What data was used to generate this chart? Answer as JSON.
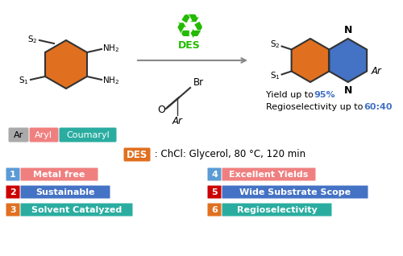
{
  "bg_color": "#ffffff",
  "orange_color": "#E07020",
  "blue_color": "#4472C4",
  "teal_color": "#2AADA0",
  "pink_color": "#F08080",
  "red_color": "#CC0000",
  "light_blue_box": "#5B9BD5",
  "green_color": "#22BB00",
  "gray_color": "#AAAAAA",
  "label_items": [
    {
      "num": "1",
      "num_bg": "#5B9BD5",
      "text": "Metal free",
      "text_bg": "#F08080"
    },
    {
      "num": "2",
      "num_bg": "#CC0000",
      "text": "Sustainable",
      "text_bg": "#4472C4"
    },
    {
      "num": "3",
      "num_bg": "#E07020",
      "text": "Solvent Catalyzed",
      "text_bg": "#2AADA0"
    }
  ],
  "label_items_right": [
    {
      "num": "4",
      "num_bg": "#5B9BD5",
      "text": "Excellent Yields",
      "text_bg": "#F08080"
    },
    {
      "num": "5",
      "num_bg": "#CC0000",
      "text": "Wide Substrate Scope",
      "text_bg": "#4472C4"
    },
    {
      "num": "6",
      "num_bg": "#E07020",
      "text": "Regioselectivity",
      "text_bg": "#2AADA0"
    }
  ],
  "des_label": "DES",
  "des_condition": " : ChCl: Glycerol, 80 °C, 120 min",
  "ar_label": "Ar",
  "aryl_label": "Aryl",
  "coumaryl_label": "Coumaryl",
  "yield_prefix": "Yield up to ",
  "yield_value": "95%",
  "regio_prefix": "Regioselectivity up to ",
  "regio_value": "60:40"
}
